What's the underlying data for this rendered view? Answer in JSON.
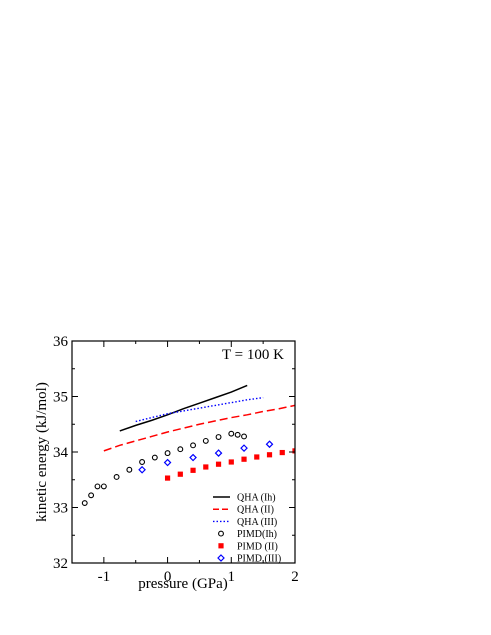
{
  "chart_data": {
    "type": "scatter",
    "xlabel": "pressure (GPa)",
    "ylabel": "kinetic energy (kJ/mol)",
    "annotation": "T = 100 K",
    "xlim": [
      -1.5,
      2.0
    ],
    "ylim": [
      32,
      36
    ],
    "xticks": [
      -1,
      0,
      1,
      2
    ],
    "xtick_labels": [
      "-1",
      "0",
      "1",
      "2"
    ],
    "yticks": [
      32,
      33,
      34,
      35,
      36
    ],
    "ytick_labels": [
      "32",
      "33",
      "34",
      "35",
      "36"
    ],
    "legend_position": "bottom-right",
    "series": [
      {
        "name": "QHA  (Ih)",
        "kind": "line",
        "style": "solid",
        "color": "#000000",
        "x": [
          -0.75,
          -0.5,
          -0.25,
          0.0,
          0.25,
          0.5,
          0.75,
          1.0,
          1.25
        ],
        "y": [
          34.38,
          34.48,
          34.57,
          34.67,
          34.78,
          34.88,
          34.98,
          35.08,
          35.2
        ]
      },
      {
        "name": "QHA  (II)",
        "kind": "line",
        "style": "dashed",
        "color": "#ff0000",
        "x": [
          -1.0,
          -0.75,
          -0.5,
          -0.25,
          0.0,
          0.25,
          0.5,
          0.75,
          1.0,
          1.25,
          1.5,
          1.75,
          2.0
        ],
        "y": [
          34.02,
          34.12,
          34.2,
          34.28,
          34.36,
          34.43,
          34.5,
          34.56,
          34.62,
          34.67,
          34.73,
          34.78,
          34.84
        ]
      },
      {
        "name": "QHA  (III)",
        "kind": "line",
        "style": "dotted",
        "color": "#0000ff",
        "x": [
          -0.5,
          -0.25,
          0.0,
          0.25,
          0.5,
          0.75,
          1.0,
          1.25,
          1.5
        ],
        "y": [
          34.55,
          34.62,
          34.69,
          34.74,
          34.79,
          34.84,
          34.89,
          34.94,
          34.98
        ]
      },
      {
        "name": "PIMD(Ih)",
        "kind": "marker",
        "marker": "open-circle",
        "color": "#000000",
        "x": [
          -1.3,
          -1.2,
          -1.1,
          -1.0,
          -0.8,
          -0.6,
          -0.4,
          -0.2,
          0.0,
          0.2,
          0.4,
          0.6,
          0.8,
          1.0,
          1.1,
          1.2
        ],
        "y": [
          33.08,
          33.22,
          33.38,
          33.38,
          33.55,
          33.68,
          33.82,
          33.9,
          33.98,
          34.05,
          34.12,
          34.2,
          34.27,
          34.33,
          34.31,
          34.28
        ]
      },
      {
        "name": "PIMD (II)",
        "kind": "marker",
        "marker": "filled-square",
        "color": "#ff0000",
        "x": [
          0.0,
          0.2,
          0.4,
          0.6,
          0.8,
          1.0,
          1.2,
          1.4,
          1.6,
          1.8,
          2.0
        ],
        "y": [
          33.53,
          33.6,
          33.67,
          33.73,
          33.78,
          33.82,
          33.87,
          33.91,
          33.95,
          33.99,
          34.02
        ]
      },
      {
        "name": "PIMD (III)",
        "kind": "marker",
        "marker": "open-diamond",
        "color": "#0000ff",
        "x": [
          -0.4,
          0.0,
          0.4,
          0.8,
          1.2,
          1.6
        ],
        "y": [
          33.68,
          33.81,
          33.9,
          33.98,
          34.07,
          34.14
        ]
      }
    ]
  }
}
